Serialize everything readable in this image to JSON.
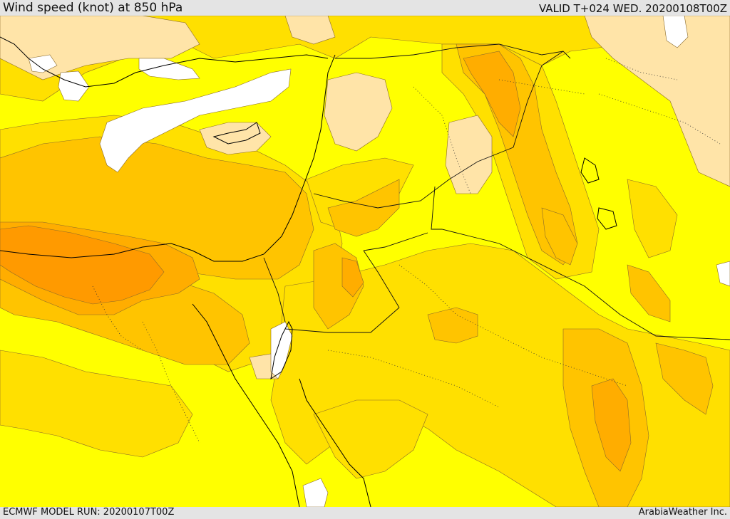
{
  "header": {
    "title": "Wind speed (knot) at 850 hPa",
    "valid": "VALID T+024 WED. 20200108T00Z"
  },
  "footer": {
    "model_run": "ECMWF MODEL RUN: 20200107T00Z",
    "credit": "ArabiaWeather Inc."
  },
  "map": {
    "region": "Eastern Mediterranean / Levant",
    "variable": "wind speed at 850 hPa",
    "colors": {
      "calm": "#ffffff",
      "light": "#ffe4a8",
      "low": "#ffff00",
      "moderate": "#ffe000",
      "fresh": "#ffc400",
      "strong": "#ffad00",
      "very_strong": "#ff9a00",
      "contour": "#8a6a2a",
      "border": "#000000"
    }
  }
}
